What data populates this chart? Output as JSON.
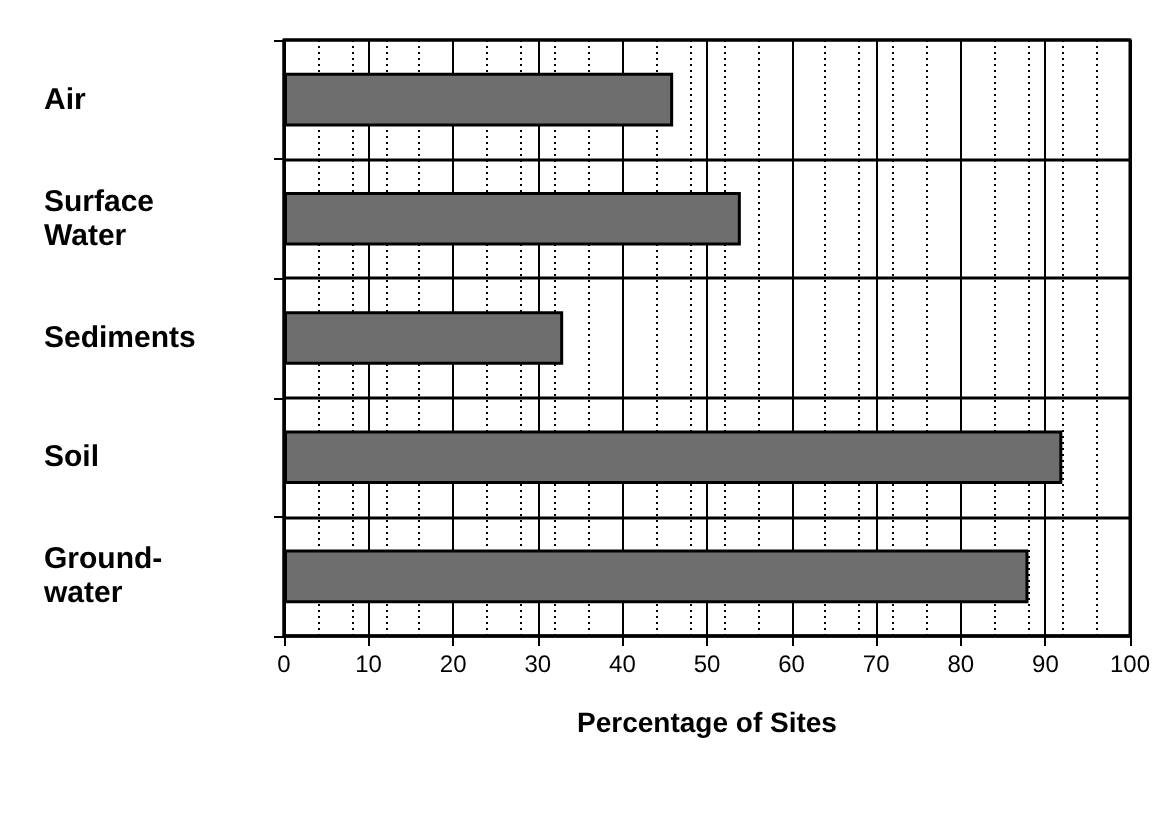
{
  "chart_data": {
    "type": "bar",
    "orientation": "horizontal",
    "xlabel": "Percentage of Sites",
    "categories": [
      "Air",
      "Surface\nWater",
      "Sediments",
      "Soil",
      "Ground-\nwater"
    ],
    "values": [
      46,
      54,
      33,
      92,
      88
    ],
    "color": "#6e6e6e",
    "xlim": [
      0,
      100
    ],
    "xticks": [
      0,
      10,
      20,
      30,
      40,
      50,
      60,
      70,
      80,
      90,
      100
    ],
    "grid": true
  }
}
